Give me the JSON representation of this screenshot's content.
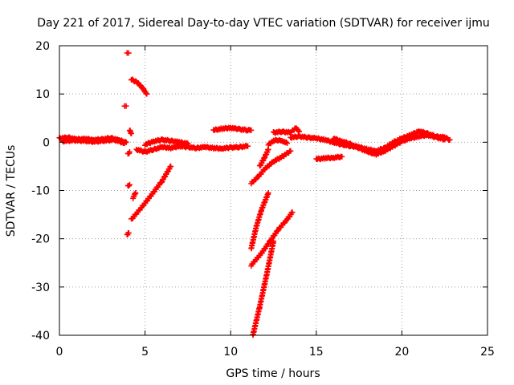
{
  "chart_data": {
    "type": "scatter",
    "title": "Day 221 of 2017, Sidereal Day-to-day VTEC variation (SDTVAR) for receiver ijmu",
    "xlabel": "GPS time / hours",
    "ylabel": "SDTVAR / TECUs",
    "xlim": [
      0,
      25
    ],
    "ylim": [
      -40,
      20
    ],
    "xticks": [
      0,
      5,
      10,
      15,
      20,
      25
    ],
    "yticks": [
      -40,
      -30,
      -20,
      -10,
      0,
      10,
      20
    ],
    "grid": true,
    "marker_color": "#ff0000",
    "marker": "plus",
    "series": [
      {
        "values": [
          [
            0.0,
            0.8
          ],
          [
            0.5,
            1.0
          ],
          [
            1.0,
            0.6
          ],
          [
            1.5,
            0.7
          ],
          [
            2.0,
            0.5
          ],
          [
            2.5,
            0.6
          ],
          [
            3.0,
            0.9
          ],
          [
            3.5,
            0.4
          ],
          [
            3.9,
            0.0
          ]
        ]
      },
      {
        "values": [
          [
            0.2,
            0.2
          ],
          [
            0.8,
            0.4
          ],
          [
            1.4,
            0.3
          ],
          [
            2.0,
            0.1
          ],
          [
            2.6,
            0.3
          ],
          [
            3.2,
            0.5
          ],
          [
            3.8,
            -0.2
          ]
        ]
      },
      {
        "values": [
          [
            3.8,
            7.5
          ]
        ]
      },
      {
        "values": [
          [
            3.95,
            18.5
          ]
        ]
      },
      {
        "values": [
          [
            4.1,
            2.5
          ],
          [
            4.2,
            1.8
          ]
        ]
      },
      {
        "values": [
          [
            4.0,
            -2.5
          ],
          [
            4.1,
            -2.0
          ]
        ]
      },
      {
        "values": [
          [
            4.0,
            -9.0
          ],
          [
            4.1,
            -8.8
          ]
        ]
      },
      {
        "values": [
          [
            4.3,
            -11.5
          ],
          [
            4.45,
            -10.5
          ]
        ]
      },
      {
        "values": [
          [
            3.95,
            -19.2
          ],
          [
            4.05,
            -18.8
          ]
        ]
      },
      {
        "values": [
          [
            4.2,
            13.0
          ],
          [
            4.5,
            12.5
          ],
          [
            4.8,
            11.5
          ],
          [
            5.1,
            10.0
          ]
        ]
      },
      {
        "values": [
          [
            4.2,
            -16.0
          ],
          [
            4.8,
            -13.5
          ],
          [
            5.4,
            -10.8
          ],
          [
            6.0,
            -8.0
          ],
          [
            6.5,
            -5.0
          ]
        ]
      },
      {
        "values": [
          [
            4.5,
            -1.5
          ],
          [
            5.0,
            -2.0
          ],
          [
            5.5,
            -1.5
          ],
          [
            6.0,
            -1.0
          ],
          [
            6.5,
            -1.2
          ],
          [
            7.0,
            -0.8
          ],
          [
            7.5,
            -1.0
          ],
          [
            8.0,
            -1.2
          ],
          [
            8.5,
            -1.0
          ],
          [
            9.0,
            -1.2
          ],
          [
            9.5,
            -1.3
          ],
          [
            10.0,
            -1.1
          ],
          [
            10.5,
            -1.0
          ],
          [
            11.0,
            -0.8
          ]
        ]
      },
      {
        "values": [
          [
            5.0,
            -0.5
          ],
          [
            5.5,
            0.2
          ],
          [
            6.0,
            0.5
          ],
          [
            6.5,
            0.3
          ],
          [
            7.0,
            0.0
          ],
          [
            7.5,
            -0.3
          ]
        ]
      },
      {
        "values": [
          [
            9.0,
            2.5
          ],
          [
            9.5,
            2.8
          ],
          [
            10.0,
            3.0
          ],
          [
            10.5,
            2.7
          ],
          [
            11.0,
            2.5
          ],
          [
            11.2,
            2.5
          ]
        ]
      },
      {
        "values": [
          [
            11.2,
            -8.5
          ],
          [
            11.6,
            -7.2
          ],
          [
            12.0,
            -5.5
          ],
          [
            12.5,
            -4.0
          ],
          [
            13.0,
            -3.0
          ],
          [
            13.5,
            -1.8
          ]
        ]
      },
      {
        "values": [
          [
            11.7,
            -5.0
          ],
          [
            12.0,
            -3.0
          ],
          [
            12.2,
            -1.5
          ]
        ]
      },
      {
        "values": [
          [
            11.2,
            -22.0
          ],
          [
            11.5,
            -17.5
          ],
          [
            11.8,
            -14.0
          ],
          [
            12.2,
            -10.5
          ]
        ]
      },
      {
        "values": [
          [
            11.2,
            -25.5
          ],
          [
            11.8,
            -23.0
          ],
          [
            12.3,
            -20.5
          ],
          [
            12.8,
            -18.0
          ],
          [
            13.3,
            -16.0
          ],
          [
            13.6,
            -14.5
          ]
        ]
      },
      {
        "values": [
          [
            11.3,
            -40.0
          ],
          [
            11.7,
            -34.0
          ],
          [
            12.1,
            -27.5
          ],
          [
            12.5,
            -20.5
          ]
        ]
      },
      {
        "values": [
          [
            12.2,
            -0.5
          ],
          [
            12.5,
            0.3
          ],
          [
            12.8,
            0.5
          ],
          [
            13.0,
            0.3
          ],
          [
            13.3,
            -0.2
          ]
        ]
      },
      {
        "values": [
          [
            12.5,
            2.0
          ],
          [
            13.0,
            2.2
          ],
          [
            13.5,
            2.0
          ],
          [
            13.8,
            3.0
          ],
          [
            14.0,
            2.2
          ]
        ]
      },
      {
        "values": [
          [
            13.5,
            1.0
          ],
          [
            14.0,
            1.2
          ],
          [
            14.5,
            1.0
          ],
          [
            15.0,
            0.8
          ],
          [
            15.5,
            0.5
          ],
          [
            16.0,
            0.0
          ],
          [
            16.5,
            -0.5
          ],
          [
            17.0,
            -0.8
          ],
          [
            17.5,
            -1.0
          ],
          [
            18.0,
            -1.5
          ],
          [
            18.5,
            -1.8
          ],
          [
            19.0,
            -1.2
          ],
          [
            19.5,
            0.0
          ],
          [
            20.0,
            0.8
          ],
          [
            20.5,
            1.5
          ],
          [
            21.0,
            2.3
          ],
          [
            21.5,
            1.8
          ],
          [
            22.0,
            1.2
          ],
          [
            22.5,
            1.0
          ],
          [
            22.8,
            0.5
          ]
        ]
      },
      {
        "values": [
          [
            16.0,
            0.8
          ],
          [
            16.5,
            0.2
          ],
          [
            17.0,
            -0.4
          ],
          [
            17.5,
            -1.2
          ],
          [
            18.0,
            -2.0
          ],
          [
            18.5,
            -2.5
          ],
          [
            19.0,
            -1.8
          ],
          [
            19.5,
            -0.8
          ],
          [
            20.0,
            0.2
          ],
          [
            20.5,
            0.8
          ],
          [
            21.0,
            1.2
          ],
          [
            21.5,
            1.5
          ],
          [
            22.0,
            1.0
          ],
          [
            22.5,
            0.6
          ]
        ]
      },
      {
        "values": [
          [
            15.0,
            -3.5
          ],
          [
            15.5,
            -3.3
          ],
          [
            16.0,
            -3.2
          ],
          [
            16.5,
            -3.0
          ]
        ]
      }
    ]
  }
}
